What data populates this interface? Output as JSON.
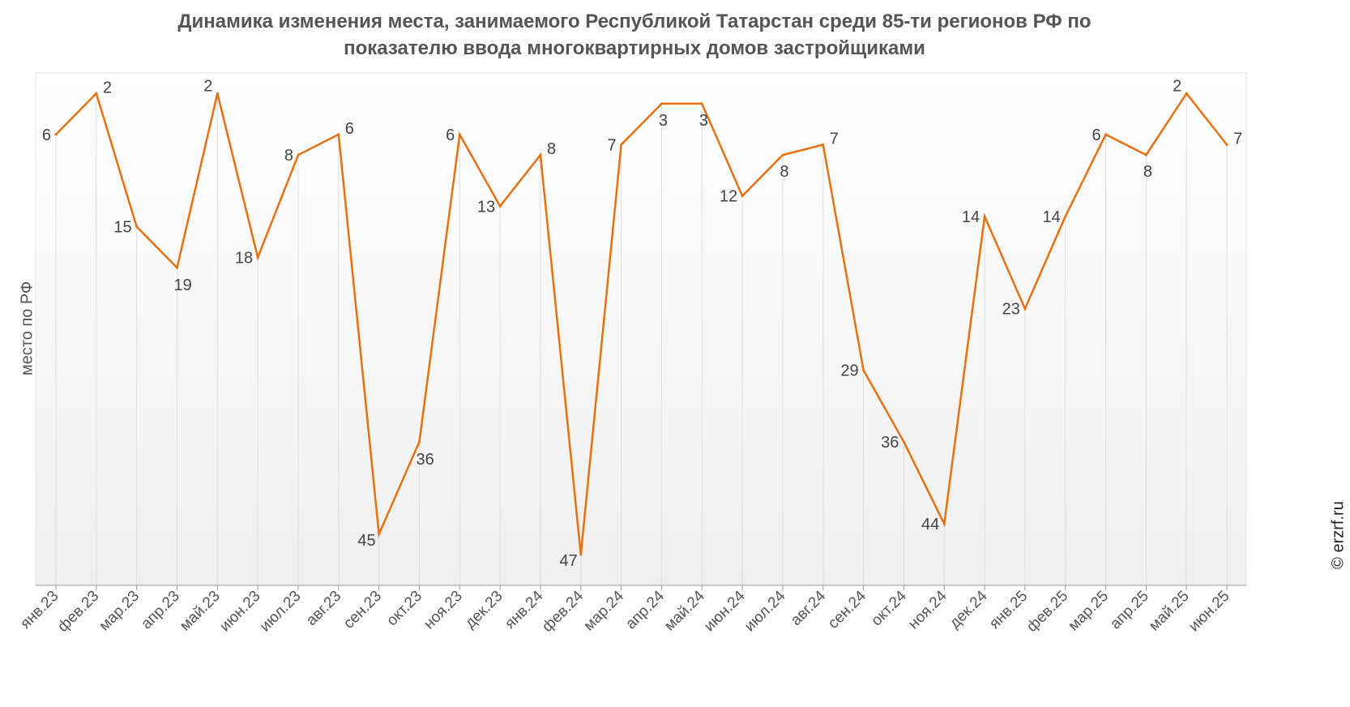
{
  "chart_data": {
    "type": "line",
    "title": "Динамика изменения места, занимаемого Республикой Татарстан среди 85-ти регионов РФ по показателю ввода многоквартирных домов застройщиками",
    "title_line1": "Динамика изменения места, занимаемого Республикой Татарстан среди 85-ти регионов РФ по",
    "title_line2": "показателю ввода многоквартирных домов застройщиками",
    "xlabel": "",
    "ylabel": "место по РФ",
    "ylim": [
      0,
      50
    ],
    "y_inverted": true,
    "grid": false,
    "credit": "© erzrf.ru",
    "line_color": "#E8700F",
    "categories": [
      "янв.23",
      "фев.23",
      "мар.23",
      "апр.23",
      "май.23",
      "июн.23",
      "июл.23",
      "авг.23",
      "сен.23",
      "окт.23",
      "ноя.23",
      "дек.23",
      "янв.24",
      "фев.24",
      "мар.24",
      "апр.24",
      "май.24",
      "июн.24",
      "июл.24",
      "авг.24",
      "сен.24",
      "окт.24",
      "ноя.24",
      "дек.24",
      "янв.25",
      "фев.25",
      "мар.25",
      "апр.25",
      "май.25",
      "июн.25"
    ],
    "values": [
      6,
      2,
      15,
      19,
      2,
      18,
      8,
      6,
      45,
      36,
      6,
      13,
      8,
      47,
      7,
      3,
      3,
      12,
      8,
      7,
      29,
      36,
      44,
      14,
      23,
      14,
      6,
      8,
      2,
      7
    ]
  }
}
